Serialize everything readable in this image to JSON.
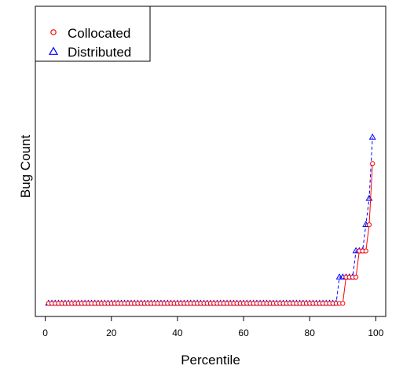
{
  "chart_data": {
    "type": "line",
    "title": "",
    "xlabel": "Percentile",
    "ylabel": "Bug Count",
    "xlim": [
      -3,
      103
    ],
    "ylim": [
      -1.5,
      34
    ],
    "x_ticks": [
      0,
      20,
      40,
      60,
      80,
      100
    ],
    "y_ticks_shown": false,
    "grid": false,
    "legend_position": "top-left",
    "series": [
      {
        "name": "Collocated",
        "color": "#ff0000",
        "marker": "circle",
        "line_style": "solid",
        "x": [
          1,
          2,
          3,
          4,
          5,
          6,
          7,
          8,
          9,
          10,
          11,
          12,
          13,
          14,
          15,
          16,
          17,
          18,
          19,
          20,
          21,
          22,
          23,
          24,
          25,
          26,
          27,
          28,
          29,
          30,
          31,
          32,
          33,
          34,
          35,
          36,
          37,
          38,
          39,
          40,
          41,
          42,
          43,
          44,
          45,
          46,
          47,
          48,
          49,
          50,
          51,
          52,
          53,
          54,
          55,
          56,
          57,
          58,
          59,
          60,
          61,
          62,
          63,
          64,
          65,
          66,
          67,
          68,
          69,
          70,
          71,
          72,
          73,
          74,
          75,
          76,
          77,
          78,
          79,
          80,
          81,
          82,
          83,
          84,
          85,
          86,
          87,
          88,
          89,
          90,
          91,
          92,
          93,
          94,
          95,
          96,
          97,
          98,
          99
        ],
        "y": [
          0,
          0,
          0,
          0,
          0,
          0,
          0,
          0,
          0,
          0,
          0,
          0,
          0,
          0,
          0,
          0,
          0,
          0,
          0,
          0,
          0,
          0,
          0,
          0,
          0,
          0,
          0,
          0,
          0,
          0,
          0,
          0,
          0,
          0,
          0,
          0,
          0,
          0,
          0,
          0,
          0,
          0,
          0,
          0,
          0,
          0,
          0,
          0,
          0,
          0,
          0,
          0,
          0,
          0,
          0,
          0,
          0,
          0,
          0,
          0,
          0,
          0,
          0,
          0,
          0,
          0,
          0,
          0,
          0,
          0,
          0,
          0,
          0,
          0,
          0,
          0,
          0,
          0,
          0,
          0,
          0,
          0,
          0,
          0,
          0,
          0,
          0,
          0,
          0,
          0,
          3,
          3,
          3,
          3,
          6,
          6,
          6,
          9,
          16
        ]
      },
      {
        "name": "Distributed",
        "color": "#0000ff",
        "marker": "triangle",
        "line_style": "dashed",
        "x": [
          1,
          2,
          3,
          4,
          5,
          6,
          7,
          8,
          9,
          10,
          11,
          12,
          13,
          14,
          15,
          16,
          17,
          18,
          19,
          20,
          21,
          22,
          23,
          24,
          25,
          26,
          27,
          28,
          29,
          30,
          31,
          32,
          33,
          34,
          35,
          36,
          37,
          38,
          39,
          40,
          41,
          42,
          43,
          44,
          45,
          46,
          47,
          48,
          49,
          50,
          51,
          52,
          53,
          54,
          55,
          56,
          57,
          58,
          59,
          60,
          61,
          62,
          63,
          64,
          65,
          66,
          67,
          68,
          69,
          70,
          71,
          72,
          73,
          74,
          75,
          76,
          77,
          78,
          79,
          80,
          81,
          82,
          83,
          84,
          85,
          86,
          87,
          88,
          89,
          90,
          91,
          92,
          93,
          94,
          95,
          96,
          97,
          98,
          99
        ],
        "y": [
          0,
          0,
          0,
          0,
          0,
          0,
          0,
          0,
          0,
          0,
          0,
          0,
          0,
          0,
          0,
          0,
          0,
          0,
          0,
          0,
          0,
          0,
          0,
          0,
          0,
          0,
          0,
          0,
          0,
          0,
          0,
          0,
          0,
          0,
          0,
          0,
          0,
          0,
          0,
          0,
          0,
          0,
          0,
          0,
          0,
          0,
          0,
          0,
          0,
          0,
          0,
          0,
          0,
          0,
          0,
          0,
          0,
          0,
          0,
          0,
          0,
          0,
          0,
          0,
          0,
          0,
          0,
          0,
          0,
          0,
          0,
          0,
          0,
          0,
          0,
          0,
          0,
          0,
          0,
          0,
          0,
          0,
          0,
          0,
          0,
          0,
          0,
          0,
          3,
          3,
          3,
          3,
          3,
          6,
          6,
          6,
          9,
          12,
          19
        ]
      }
    ]
  }
}
